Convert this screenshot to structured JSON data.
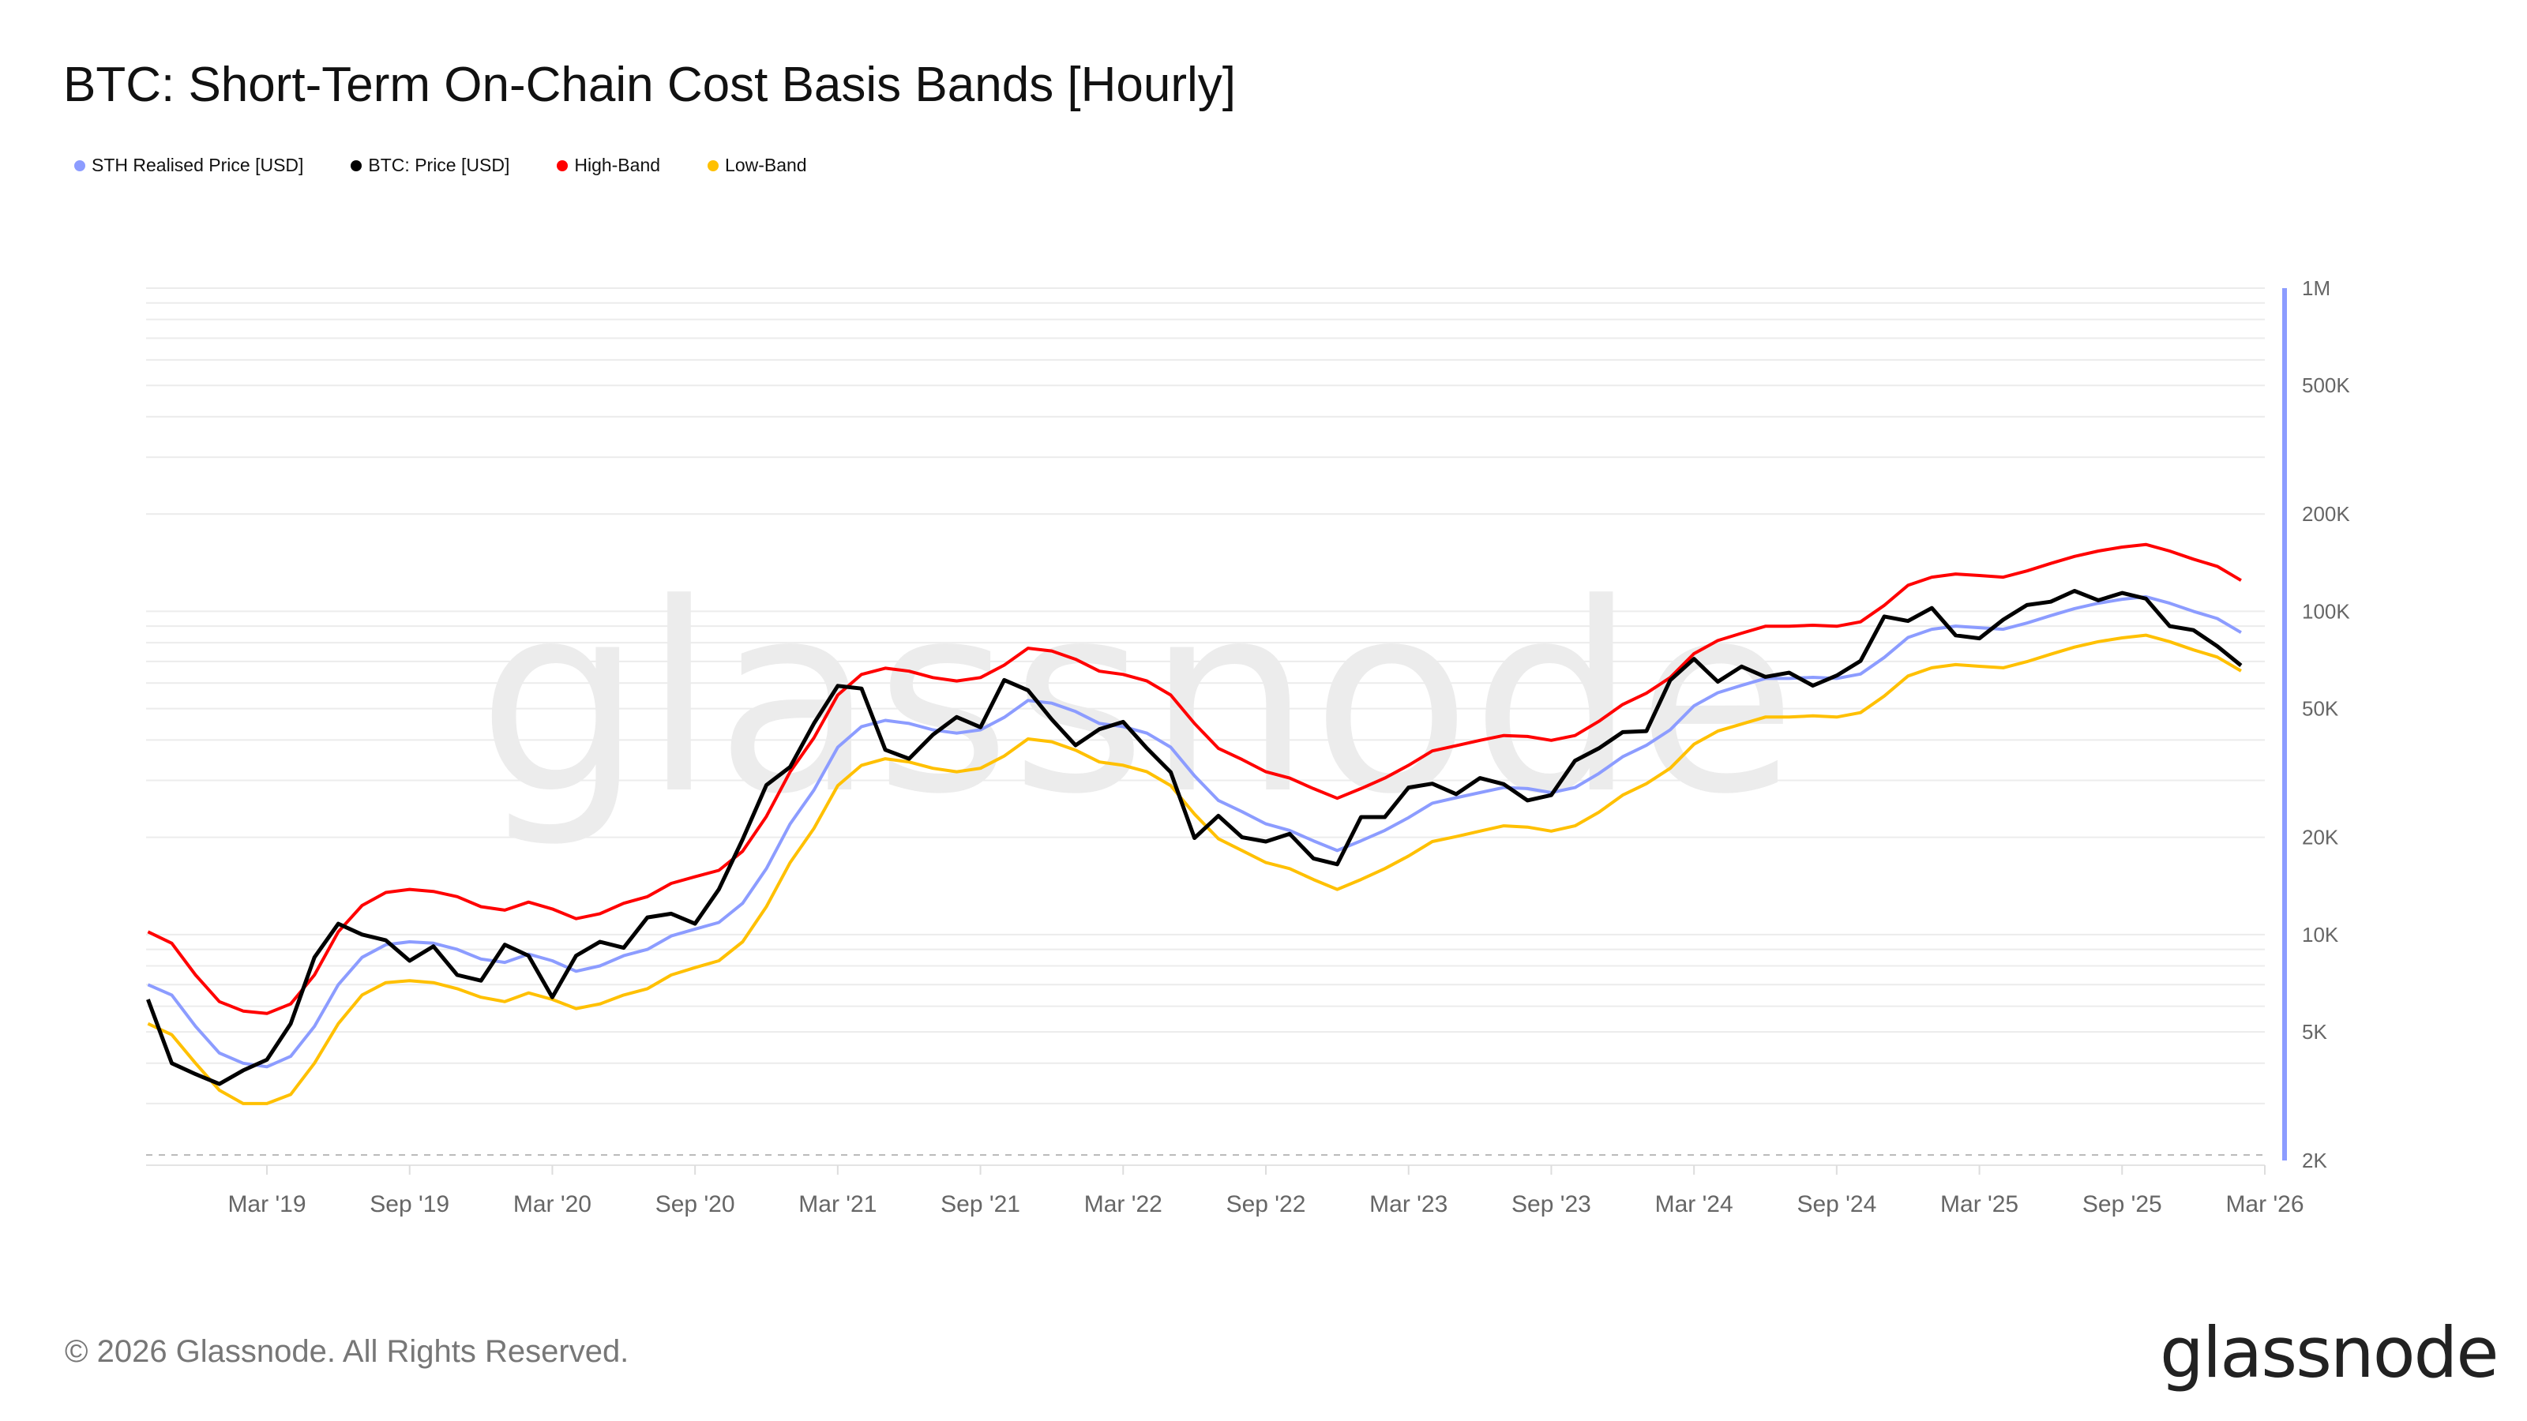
{
  "title": "BTC: Short-Term On-Chain Cost Basis Bands [Hourly]",
  "footer": "© 2026 Glassnode. All Rights Reserved.",
  "logo_text": "glassnode",
  "watermark": "glassnode",
  "chart_data": {
    "type": "line",
    "title": "BTC: Short-Term On-Chain Cost Basis Bands [Hourly]",
    "y_scale": "log",
    "ylim": [
      2000,
      1000000
    ],
    "xlim": [
      "2018-10",
      "2026-02"
    ],
    "y_ticks": [
      {
        "value": 1000000,
        "label": "1M"
      },
      {
        "value": 500000,
        "label": "500K"
      },
      {
        "value": 200000,
        "label": "200K"
      },
      {
        "value": 100000,
        "label": "100K"
      },
      {
        "value": 50000,
        "label": "50K"
      },
      {
        "value": 20000,
        "label": "20K"
      },
      {
        "value": 10000,
        "label": "10K"
      },
      {
        "value": 5000,
        "label": "5K"
      },
      {
        "value": 2000,
        "label": "2K"
      }
    ],
    "x_ticks": [
      {
        "date": "2019-03",
        "label": "Mar '19"
      },
      {
        "date": "2019-09",
        "label": "Sep '19"
      },
      {
        "date": "2020-03",
        "label": "Mar '20"
      },
      {
        "date": "2020-09",
        "label": "Sep '20"
      },
      {
        "date": "2021-03",
        "label": "Mar '21"
      },
      {
        "date": "2021-09",
        "label": "Sep '21"
      },
      {
        "date": "2022-03",
        "label": "Mar '22"
      },
      {
        "date": "2022-09",
        "label": "Sep '22"
      },
      {
        "date": "2023-03",
        "label": "Mar '23"
      },
      {
        "date": "2023-09",
        "label": "Sep '23"
      },
      {
        "date": "2024-03",
        "label": "Mar '24"
      },
      {
        "date": "2024-09",
        "label": "Sep '24"
      },
      {
        "date": "2025-03",
        "label": "Mar '25"
      },
      {
        "date": "2025-09",
        "label": "Sep '25"
      },
      {
        "date": "2026-03",
        "label": "Mar '26"
      }
    ],
    "grid": true,
    "legend_position": "top-left",
    "x_start": "2018-10",
    "x_step": "monthly",
    "series": [
      {
        "name": "STH Realised Price [USD]",
        "color": "#8c9cff",
        "values": [
          7000,
          6500,
          5200,
          4300,
          4000,
          3900,
          4200,
          5200,
          7000,
          8500,
          9300,
          9500,
          9400,
          9000,
          8400,
          8200,
          8700,
          8300,
          7700,
          8000,
          8600,
          9000,
          9900,
          10400,
          10900,
          12500,
          16000,
          22000,
          28000,
          38000,
          44000,
          46000,
          45000,
          43000,
          42000,
          43000,
          47000,
          53000,
          52000,
          49000,
          45000,
          44000,
          42000,
          38000,
          31000,
          26000,
          24000,
          22000,
          21000,
          19500,
          18200,
          19500,
          21000,
          23000,
          25500,
          26500,
          27500,
          28500,
          28300,
          27500,
          28500,
          31500,
          35500,
          38500,
          43000,
          51000,
          56000,
          59000,
          62000,
          62000,
          62500,
          62000,
          64000,
          72000,
          83000,
          88000,
          90000,
          89000,
          88000,
          92000,
          97000,
          102000,
          106000,
          109000,
          111000,
          106000,
          100000,
          95000,
          86000
        ]
      },
      {
        "name": "BTC: Price [USD]",
        "color": "#000000",
        "values": [
          6300,
          4000,
          3700,
          3450,
          3800,
          4100,
          5300,
          8500,
          10800,
          10000,
          9600,
          8300,
          9200,
          7500,
          7200,
          9300,
          8600,
          6400,
          8600,
          9500,
          9100,
          11300,
          11600,
          10800,
          13800,
          19700,
          29000,
          33000,
          45000,
          58800,
          57700,
          37300,
          35000,
          41500,
          47100,
          43800,
          61300,
          57000,
          46300,
          38500,
          43200,
          45500,
          37700,
          31800,
          19900,
          23300,
          20000,
          19400,
          20500,
          17200,
          16500,
          23100,
          23100,
          28500,
          29300,
          27200,
          30500,
          29200,
          26000,
          27000,
          34500,
          37700,
          42300,
          42600,
          61200,
          71300,
          60600,
          67500,
          62700,
          64600,
          58900,
          63300,
          70200,
          96400,
          93400,
          102400,
          84300,
          82500,
          94200,
          104600,
          107100,
          115700,
          108200,
          114000,
          109500,
          90000,
          87500,
          78000,
          68000
        ]
      },
      {
        "name": "High-Band",
        "color": "#ff0000",
        "values": [
          10200,
          9400,
          7500,
          6200,
          5800,
          5700,
          6100,
          7500,
          10200,
          12300,
          13500,
          13800,
          13600,
          13100,
          12200,
          11900,
          12600,
          12000,
          11200,
          11600,
          12500,
          13100,
          14400,
          15100,
          15800,
          18100,
          23200,
          31900,
          40600,
          55100,
          63800,
          66700,
          65300,
          62400,
          60900,
          62400,
          68200,
          76900,
          75400,
          71100,
          65300,
          63800,
          60900,
          55100,
          45000,
          37700,
          34800,
          31900,
          30500,
          28300,
          26400,
          28300,
          30500,
          33400,
          37000,
          38400,
          39900,
          41300,
          41000,
          39900,
          41300,
          45700,
          51500,
          55800,
          62400,
          74000,
          81200,
          85600,
          89900,
          89900,
          90600,
          89900,
          92800,
          104400,
          120400,
          127600,
          130500,
          129100,
          127600,
          133400,
          140700,
          147900,
          153700,
          158100,
          161000,
          153700,
          145000,
          137800,
          124700
        ]
      },
      {
        "name": "Low-Band",
        "color": "#ffc000",
        "values": [
          5300,
          4900,
          4000,
          3300,
          3000,
          3000,
          3200,
          4000,
          5300,
          6500,
          7100,
          7200,
          7100,
          6800,
          6400,
          6200,
          6600,
          6300,
          5900,
          6100,
          6500,
          6800,
          7500,
          7900,
          8300,
          9500,
          12200,
          16700,
          21300,
          28900,
          33400,
          35000,
          34200,
          32700,
          31900,
          32700,
          35700,
          40300,
          39500,
          37200,
          34200,
          33400,
          31900,
          28900,
          23600,
          19800,
          18200,
          16700,
          16000,
          14800,
          13800,
          14800,
          16000,
          17500,
          19400,
          20100,
          20900,
          21700,
          21500,
          20900,
          21700,
          23900,
          27000,
          29300,
          32700,
          38800,
          42600,
          44800,
          47100,
          47100,
          47500,
          47100,
          48600,
          54700,
          63100,
          66900,
          68400,
          67600,
          66900,
          69900,
          73700,
          77500,
          80600,
          82800,
          84400,
          80600,
          76000,
          72200,
          65400
        ]
      }
    ]
  }
}
